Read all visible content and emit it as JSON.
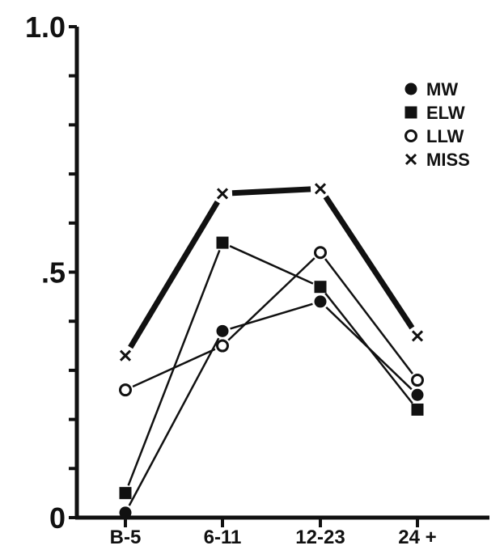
{
  "chart_data": {
    "type": "line",
    "categories": [
      "B-5",
      "6-11",
      "12-23",
      "24 +"
    ],
    "y_ticks": [
      {
        "value": 1.0,
        "label": "1.0"
      },
      {
        "value": 0.5,
        "label": ".5"
      },
      {
        "value": 0.0,
        "label": "0"
      }
    ],
    "ylim": [
      0,
      1.0
    ],
    "minor_tick_step": 0.1,
    "grid": false,
    "legend_position": "top-right",
    "series": [
      {
        "name": "MW",
        "marker": "filled-circle",
        "values": [
          0.01,
          0.38,
          0.44,
          0.25
        ],
        "stroke": "thin"
      },
      {
        "name": "ELW",
        "marker": "filled-square",
        "values": [
          0.05,
          0.56,
          0.47,
          0.22
        ],
        "stroke": "thin"
      },
      {
        "name": "LLW",
        "marker": "open-circle",
        "values": [
          0.26,
          0.35,
          0.54,
          0.28
        ],
        "stroke": "thin"
      },
      {
        "name": "MISS",
        "marker": "x",
        "values": [
          0.33,
          0.66,
          0.67,
          0.37
        ],
        "stroke": "thick"
      }
    ],
    "colors": {
      "ink": "#111111",
      "background": "#ffffff"
    }
  }
}
